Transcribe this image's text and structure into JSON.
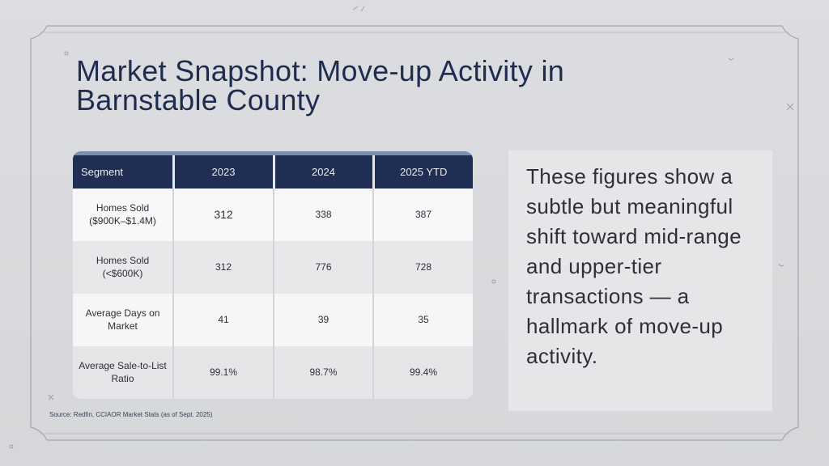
{
  "title": "Market Snapshot: Move-up Activity in Barnstable County",
  "table": {
    "headers": [
      "Segment",
      "2023",
      "2024",
      "2025 YTD"
    ],
    "rows": [
      {
        "label": "Homes Sold ($900K–$1.4M)",
        "values": [
          "312",
          "338",
          "387"
        ]
      },
      {
        "label": "Homes Sold (<$600K)",
        "values": [
          "312",
          "776",
          "728"
        ]
      },
      {
        "label": "Average Days on Market",
        "values": [
          "41",
          "39",
          "35"
        ]
      },
      {
        "label": "Average Sale-to-List Ratio",
        "values": [
          "99.1%",
          "98.7%",
          "99.4%"
        ]
      }
    ]
  },
  "note": "These figures show a subtle but meaningful shift toward mid-range and upper-tier transactions — a hallmark of move-up activity.",
  "source": "Source: Redfin, CCIAOR Market Stats (as of Sept. 2025)",
  "colors": {
    "header_bg": "#1f2e52",
    "title": "#1e2d4f",
    "background": "#d9dadd"
  }
}
